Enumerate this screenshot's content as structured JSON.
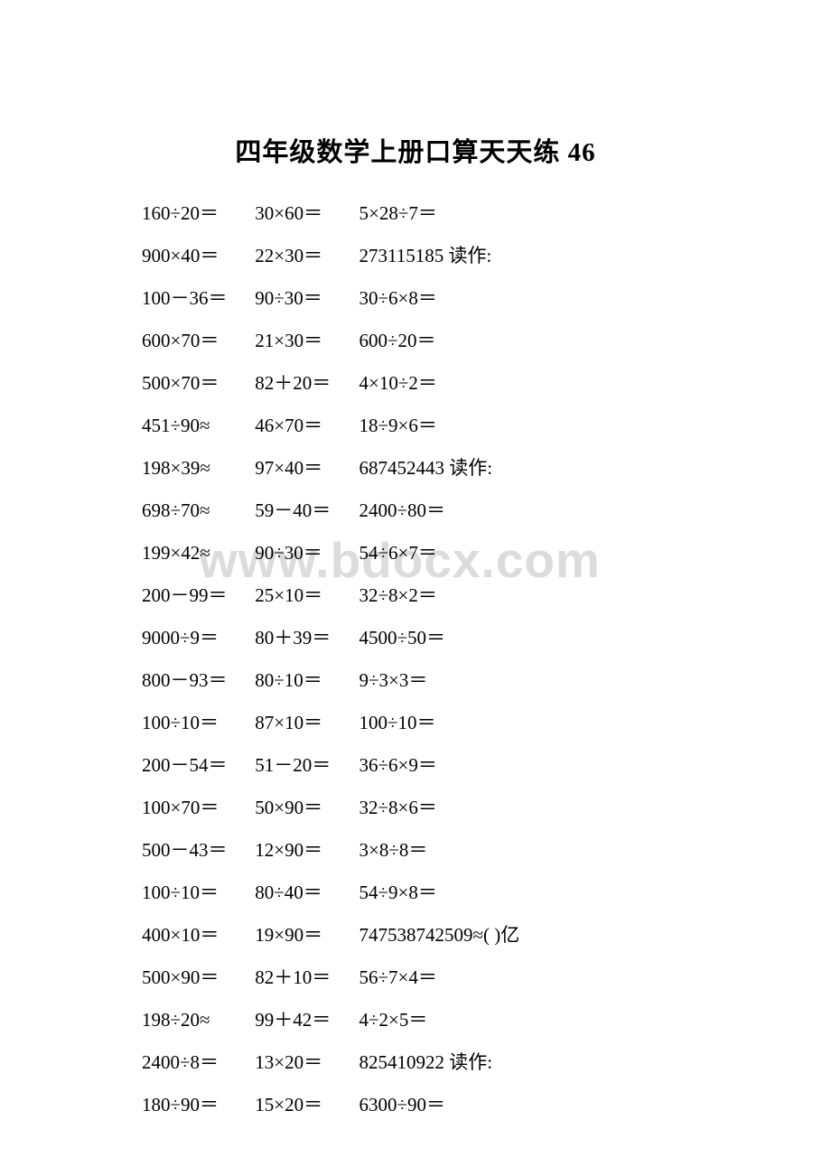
{
  "title": "四年级数学上册口算天天练 46",
  "watermark": "www.bdocx.com",
  "text_color": "#000000",
  "background_color": "#ffffff",
  "watermark_color": "#dcdcdc",
  "title_fontsize": 29,
  "body_fontsize": 21,
  "line_height": 47,
  "rows": [
    {
      "c1": "160÷20＝",
      "c2": "30×60＝",
      "c3": "5×28÷7＝"
    },
    {
      "c1": "900×40＝",
      "c2": "22×30＝",
      "c3": "273115185 读作:"
    },
    {
      "c1": "100－36＝",
      "c2": "90÷30＝",
      "c3": "30÷6×8＝"
    },
    {
      "c1": "600×70＝",
      "c2": "21×30＝",
      "c3": "600÷20＝"
    },
    {
      "c1": "500×70＝",
      "c2": "82＋20＝",
      "c3": "4×10÷2＝"
    },
    {
      "c1": "451÷90≈",
      "c2": "46×70＝",
      "c3": "18÷9×6＝"
    },
    {
      "c1": "198×39≈",
      "c2": "97×40＝",
      "c3": "687452443 读作:"
    },
    {
      "c1": "698÷70≈",
      "c2": "59－40＝",
      "c3": "2400÷80＝"
    },
    {
      "c1": "199×42≈",
      "c2": "90÷30＝",
      "c3": "54÷6×7＝"
    },
    {
      "c1": "200－99＝",
      "c2": "25×10＝",
      "c3": "32÷8×2＝"
    },
    {
      "c1": "9000÷9＝",
      "c2": "80＋39＝",
      "c3": "4500÷50＝"
    },
    {
      "c1": "800－93＝",
      "c2": "80÷10＝",
      "c3": "9÷3×3＝"
    },
    {
      "c1": "100÷10＝",
      "c2": "87×10＝",
      "c3": "100÷10＝"
    },
    {
      "c1": "200－54＝",
      "c2": "51－20＝",
      "c3": "36÷6×9＝"
    },
    {
      "c1": "100×70＝",
      "c2": "50×90＝",
      "c3": "32÷8×6＝"
    },
    {
      "c1": "500－43＝",
      "c2": "12×90＝",
      "c3": "3×8÷8＝"
    },
    {
      "c1": "100÷10＝",
      "c2": "80÷40＝",
      "c3": "54÷9×8＝"
    },
    {
      "c1": "400×10＝",
      "c2": "19×90＝",
      "c3": "747538742509≈( )亿"
    },
    {
      "c1": "500×90＝",
      "c2": "82＋10＝",
      "c3": "56÷7×4＝"
    },
    {
      "c1": "198÷20≈",
      "c2": "99＋42＝",
      "c3": "4÷2×5＝"
    },
    {
      "c1": "2400÷8＝",
      "c2": "13×20＝",
      "c3": "825410922 读作:"
    },
    {
      "c1": "180÷90＝",
      "c2": "15×20＝",
      "c3": "6300÷90＝"
    }
  ]
}
